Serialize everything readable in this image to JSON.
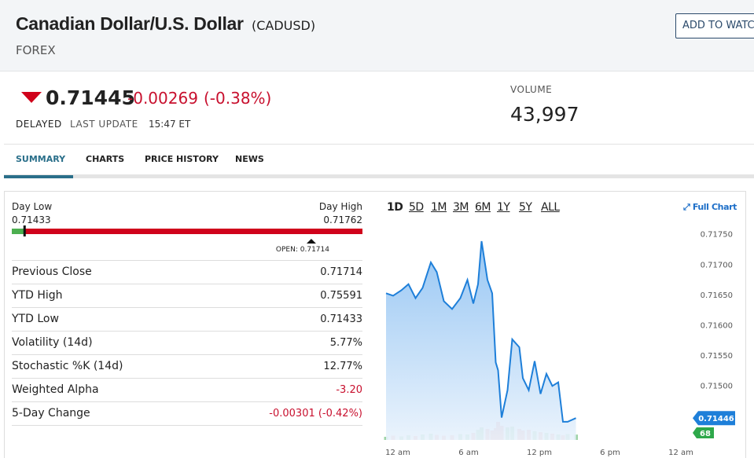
{
  "header": {
    "title": "Canadian Dollar/U.S. Dollar",
    "symbol": "(CADUSD)",
    "category": "FOREX",
    "watch_button": "ADD TO WATCH"
  },
  "quote": {
    "price": 0.71445,
    "change": "-0.00269",
    "change_pct": "(-0.38%)",
    "status": "DELAYED",
    "last_update_label": "LAST UPDATE",
    "last_update": "15:47 ET",
    "volume_label": "VOLUME",
    "volume": "43,997"
  },
  "tabs": [
    "SUMMARY",
    "CHARTS",
    "PRICE HISTORY",
    "NEWS"
  ],
  "range": {
    "low_label": "Day Low",
    "low": 0.71433,
    "high_label": "Day High",
    "high": 0.71762,
    "open_label": "OPEN:",
    "open": 0.71714
  },
  "stats": {
    "rows": [
      {
        "label": "Previous Close",
        "value": "0.71714"
      },
      {
        "label": "YTD High",
        "value": "0.75591"
      },
      {
        "label": "YTD Low",
        "value": "0.71433"
      },
      {
        "label": "Volatility (14d)",
        "value": "5.77%"
      },
      {
        "label": "Stochastic %K (14d)",
        "value": "12.77%"
      },
      {
        "label": "Weighted Alpha",
        "value": "-3.20"
      },
      {
        "label": "5-Day Change",
        "value": "-0.00301 (-0.42%)"
      }
    ]
  },
  "chart_data": {
    "type": "area",
    "ranges": [
      "1D",
      "5D",
      "1M",
      "3M",
      "6M",
      "1Y",
      "5Y",
      "ALL"
    ],
    "full_chart": "Full Chart",
    "x": [
      -1,
      -0.4,
      0.3,
      0.9,
      1.5,
      2.1,
      2.8,
      3.3,
      3.9,
      4.6,
      5.3,
      5.9,
      6.4,
      6.8,
      7.1,
      7.6,
      8,
      8.3,
      8.5,
      8.8,
      9.3,
      9.7,
      10.3,
      10.6,
      11.1,
      11.6,
      12.1,
      12.6,
      13.1,
      13.6,
      14,
      14.4,
      15.1
    ],
    "series": [
      {
        "name": "Price",
        "color": "#1e7fd9",
        "values": [
          0.71652,
          0.71648,
          0.71657,
          0.71667,
          0.71644,
          0.71661,
          0.71703,
          0.71687,
          0.71639,
          0.71626,
          0.71644,
          0.71674,
          0.71635,
          0.71667,
          0.71738,
          0.71674,
          0.71652,
          0.71538,
          0.71525,
          0.71447,
          0.71492,
          0.71576,
          0.71563,
          0.71512,
          0.71492,
          0.7154,
          0.71486,
          0.71519,
          0.71499,
          0.71505,
          0.7144,
          0.7144,
          0.71446
        ]
      },
      {
        "name": "Volume",
        "color": "#2ea84a",
        "axis": "y2",
        "values": [
          40,
          55,
          45,
          60,
          50,
          70,
          80,
          65,
          55,
          60,
          75,
          70,
          90,
          130,
          160,
          140,
          120,
          150,
          230,
          180,
          160,
          170,
          140,
          120,
          130,
          110,
          100,
          90,
          80,
          70,
          60,
          75,
          68
        ]
      }
    ],
    "xlim": [
      -1,
      25
    ],
    "xticks": [
      {
        "value": 0,
        "label": "12 am"
      },
      {
        "value": 6,
        "label": "6 am"
      },
      {
        "value": 12,
        "label": "12 pm"
      },
      {
        "value": 18,
        "label": "6 pm"
      },
      {
        "value": 24,
        "label": "12 am"
      }
    ],
    "ylim": [
      0.7141,
      0.7176
    ],
    "yticks": [
      {
        "value": 0.715,
        "label": "0.71500"
      },
      {
        "value": 0.7155,
        "label": "0.71550"
      },
      {
        "value": 0.716,
        "label": "0.71600"
      },
      {
        "value": 0.7165,
        "label": "0.71650"
      },
      {
        "value": 0.717,
        "label": "0.71700"
      },
      {
        "value": 0.7175,
        "label": "0.71750"
      }
    ],
    "y2lim": [
      0,
      300
    ]
  }
}
